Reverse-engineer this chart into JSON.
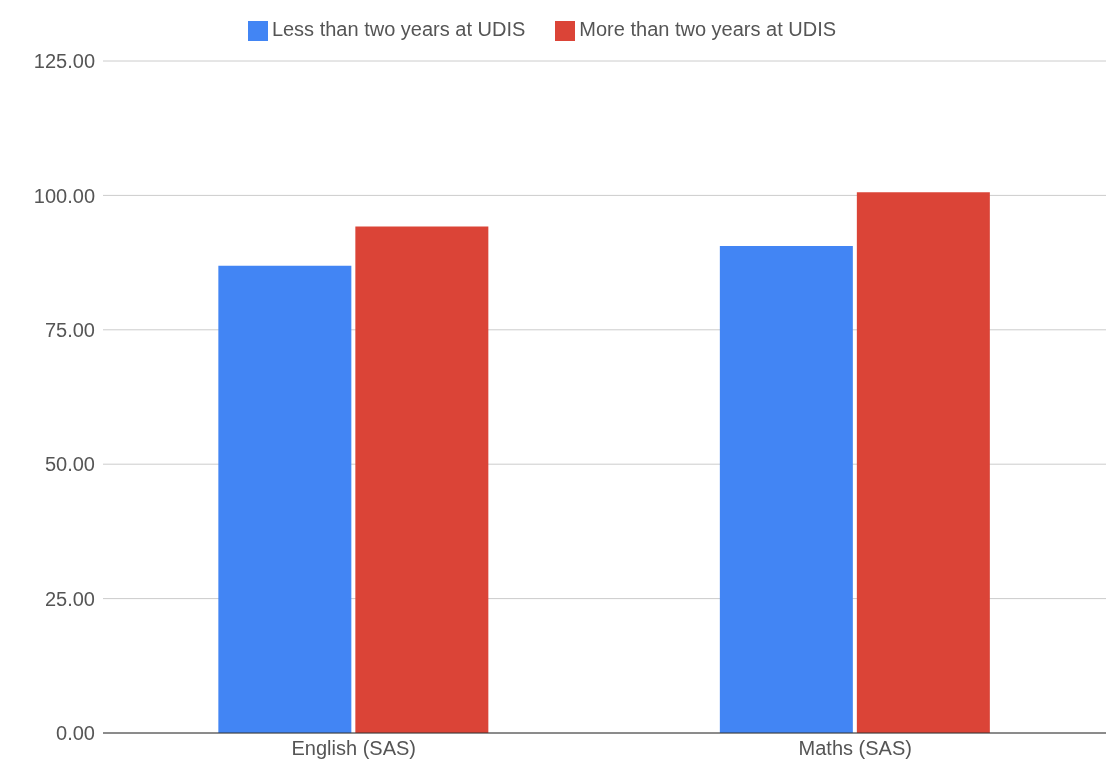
{
  "chart_data": {
    "type": "bar",
    "categories": [
      "English (SAS)",
      "Maths (SAS)"
    ],
    "series": [
      {
        "name": "Less than two years at UDIS",
        "color": "#4285f4",
        "values": [
          86.9,
          90.6
        ]
      },
      {
        "name": "More than two years at UDIS",
        "color": "#db4437",
        "values": [
          94.2,
          100.6
        ]
      }
    ],
    "ylim": [
      0,
      125
    ],
    "yticks": [
      {
        "value": 0,
        "label": "0.00"
      },
      {
        "value": 25,
        "label": "25.00"
      },
      {
        "value": 50,
        "label": "50.00"
      },
      {
        "value": 75,
        "label": "75.00"
      },
      {
        "value": 100,
        "label": "100.00"
      },
      {
        "value": 125,
        "label": "125.00"
      }
    ],
    "grid": "y",
    "legend": "top"
  }
}
